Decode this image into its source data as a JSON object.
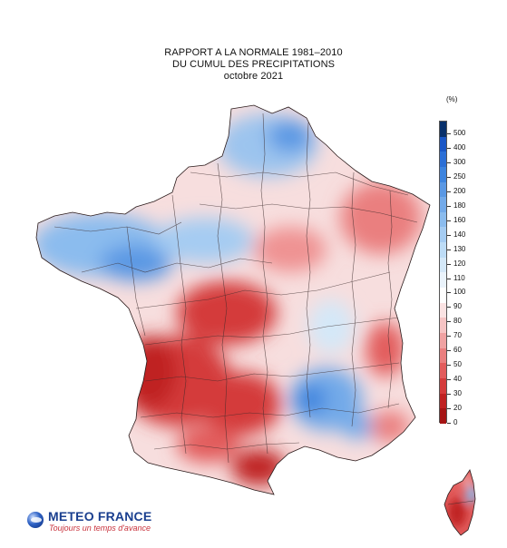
{
  "title": {
    "line1": "RAPPORT A LA NORMALE 1981–2010",
    "line2": "DU CUMUL DES PRECIPITATIONS",
    "line3": "octobre 2021"
  },
  "legend": {
    "unit": "(%)",
    "labels": [
      "500",
      "400",
      "300",
      "250",
      "200",
      "180",
      "160",
      "140",
      "130",
      "120",
      "110",
      "100",
      "90",
      "80",
      "70",
      "60",
      "50",
      "40",
      "30",
      "20",
      "0"
    ],
    "colors": [
      "#08306b",
      "#1a57c6",
      "#2b6fd6",
      "#3d84de",
      "#5a98e4",
      "#73aae9",
      "#8bbcee",
      "#a5ccf2",
      "#bddcf6",
      "#d4e8f8",
      "#eaf3fb",
      "#ffffff",
      "#fbe3e3",
      "#f6c4c4",
      "#f0a2a2",
      "#ea7f7f",
      "#e25c5c",
      "#d43b3b",
      "#bf2222",
      "#a51414"
    ]
  },
  "map": {
    "region": "France",
    "inset": "Corse",
    "drier_color": "#e05a5a",
    "wetter_color": "#5a98e4"
  },
  "logo": {
    "name": "METEO FRANCE",
    "slogan": "Toujours un temps d'avance"
  }
}
